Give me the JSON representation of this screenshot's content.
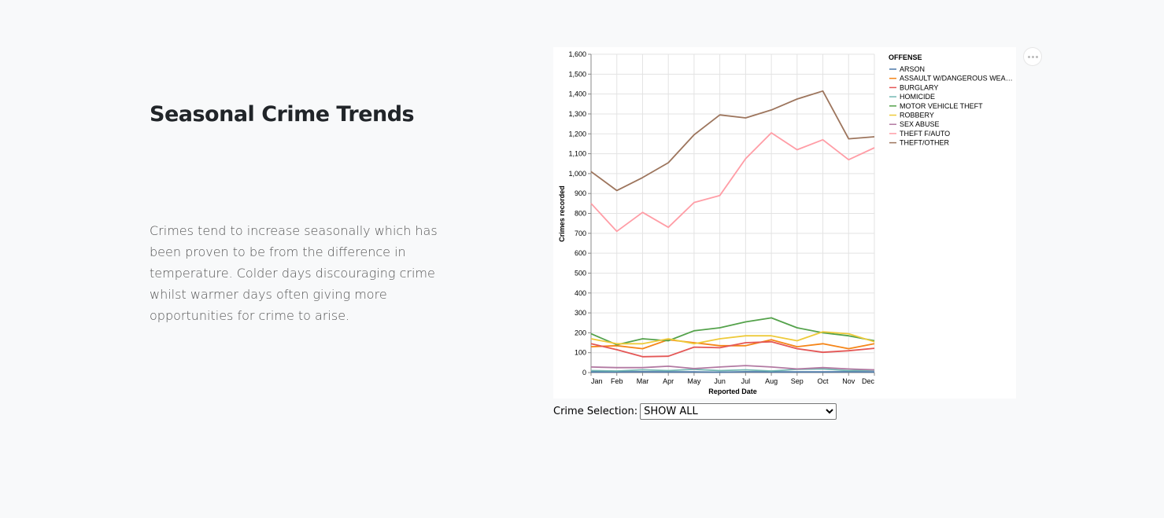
{
  "page": {
    "title": "Seasonal Crime Trends",
    "description": "Crimes tend to increase seasonally which has been proven to be from the difference in temperature. Colder days discouraging crime whilst warmer days often giving more opportunities for crime to arise."
  },
  "selection": {
    "label": "Crime Selection:",
    "value": "SHOW ALL"
  },
  "actions_icon": "ellipsis-icon",
  "chart_data": {
    "type": "line",
    "xlabel": "Reported Date",
    "ylabel": "Crimes recorded",
    "ylim": [
      0,
      1600
    ],
    "yticks": [
      0,
      100,
      200,
      300,
      400,
      500,
      600,
      700,
      800,
      900,
      1000,
      1100,
      1200,
      1300,
      1400,
      1500,
      1600
    ],
    "ytick_labels": [
      "0",
      "100",
      "200",
      "300",
      "400",
      "500",
      "600",
      "700",
      "800",
      "900",
      "1,000",
      "1,100",
      "1,200",
      "1,300",
      "1,400",
      "1,500",
      "1,600"
    ],
    "grid": true,
    "legend_title": "OFFENSE",
    "legend_position": "right",
    "categories": [
      "Jan",
      "Feb",
      "Mar",
      "Apr",
      "May",
      "Jun",
      "Jul",
      "Aug",
      "Sep",
      "Oct",
      "Nov",
      "Dec"
    ],
    "series": [
      {
        "name": "ARSON",
        "legend_label": "ARSON",
        "color": "#4c78a8",
        "values": [
          3,
          3,
          4,
          3,
          3,
          2,
          4,
          3,
          3,
          3,
          4,
          3
        ]
      },
      {
        "name": "ASSAULT W/DANGEROUS WEAPON",
        "legend_label": "ASSAULT W/DANGEROUS WEA…",
        "color": "#f58518",
        "values": [
          130,
          135,
          120,
          165,
          150,
          135,
          135,
          165,
          130,
          145,
          120,
          145
        ]
      },
      {
        "name": "BURGLARY",
        "legend_label": "BURGLARY",
        "color": "#e45756",
        "values": [
          145,
          115,
          80,
          82,
          128,
          125,
          150,
          155,
          120,
          102,
          110,
          122
        ]
      },
      {
        "name": "HOMICIDE",
        "legend_label": "HOMICIDE",
        "color": "#72b7b2",
        "values": [
          10,
          8,
          14,
          10,
          16,
          10,
          14,
          8,
          16,
          18,
          10,
          12
        ]
      },
      {
        "name": "MOTOR VEHICLE THEFT",
        "legend_label": "MOTOR VEHICLE THEFT",
        "color": "#54a24b",
        "values": [
          195,
          140,
          170,
          160,
          210,
          225,
          255,
          275,
          225,
          200,
          185,
          160
        ]
      },
      {
        "name": "ROBBERY",
        "legend_label": "ROBBERY",
        "color": "#eeca3b",
        "values": [
          170,
          145,
          145,
          170,
          145,
          170,
          185,
          185,
          160,
          205,
          195,
          155
        ]
      },
      {
        "name": "SEX ABUSE",
        "legend_label": "SEX ABUSE",
        "color": "#b279a2",
        "values": [
          28,
          25,
          25,
          32,
          20,
          28,
          35,
          28,
          18,
          25,
          18,
          14
        ]
      },
      {
        "name": "THEFT F/AUTO",
        "legend_label": "THEFT F/AUTO",
        "color": "#ff9da6",
        "values": [
          850,
          710,
          805,
          730,
          855,
          890,
          1075,
          1205,
          1120,
          1170,
          1070,
          1130
        ]
      },
      {
        "name": "THEFT/OTHER",
        "legend_label": "THEFT/OTHER",
        "color": "#9d755d",
        "values": [
          1010,
          915,
          980,
          1055,
          1195,
          1295,
          1280,
          1320,
          1375,
          1415,
          1175,
          1185
        ]
      }
    ]
  }
}
